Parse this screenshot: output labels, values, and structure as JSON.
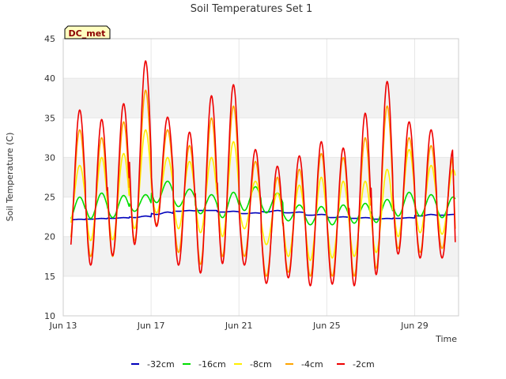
{
  "chart_data": {
    "type": "line",
    "title": "Soil Temperatures Set 1",
    "xlabel": "Time",
    "ylabel": "Soil Temperature (C)",
    "badge": "DC_met",
    "ylim": [
      10,
      45
    ],
    "xlim": [
      0,
      18
    ],
    "x_ticks": [
      {
        "x": 0,
        "label": "Jun 13"
      },
      {
        "x": 4,
        "label": "Jun 17"
      },
      {
        "x": 8,
        "label": "Jun 21"
      },
      {
        "x": 12,
        "label": "Jun 25"
      },
      {
        "x": 16,
        "label": "Jun 29"
      }
    ],
    "y_ticks": [
      10,
      15,
      20,
      25,
      30,
      35,
      40,
      45
    ],
    "bands": [
      [
        15,
        20
      ],
      [
        25,
        30
      ],
      [
        35,
        40
      ]
    ],
    "band_color": "#f2f2f2",
    "legend_position": "bottom",
    "series": [
      {
        "name": "-32cm",
        "color": "#0000bb",
        "daily_min": [
          22.1,
          22.2,
          22.3,
          22.4,
          22.8,
          23.2,
          23.3,
          23.1,
          22.9,
          23.1,
          23.0,
          22.7,
          22.4,
          22.3,
          22.2,
          22.3,
          22.6,
          22.7
        ],
        "daily_max": [
          22.2,
          22.3,
          22.4,
          22.6,
          23.1,
          23.3,
          23.3,
          23.2,
          23.0,
          23.3,
          23.1,
          22.8,
          22.5,
          22.4,
          22.3,
          22.4,
          22.8,
          22.8
        ]
      },
      {
        "name": "-16cm",
        "color": "#00dd00",
        "daily_min": [
          22.0,
          22.3,
          22.4,
          23.2,
          24.3,
          23.8,
          22.9,
          22.4,
          23.3,
          23.0,
          22.0,
          21.5,
          21.5,
          21.7,
          21.8,
          22.6,
          22.6,
          22.4
        ],
        "daily_max": [
          25.0,
          25.5,
          25.2,
          25.3,
          27.0,
          26.0,
          25.3,
          25.6,
          26.3,
          25.5,
          24.0,
          23.8,
          24.0,
          24.2,
          24.7,
          25.6,
          25.3,
          25.0
        ]
      },
      {
        "name": "-8cm",
        "color": "#ffee00",
        "daily_min": [
          21.0,
          19.5,
          19.6,
          21.0,
          23.0,
          21.0,
          20.5,
          20.0,
          21.0,
          19.0,
          17.5,
          17.0,
          17.3,
          17.5,
          18.0,
          20.0,
          20.5,
          20.3
        ],
        "daily_max": [
          29.0,
          30.0,
          30.5,
          33.5,
          30.0,
          29.5,
          30.0,
          32.0,
          27.0,
          25.5,
          26.5,
          27.5,
          27.0,
          27.0,
          28.5,
          31.0,
          29.0,
          28.5
        ]
      },
      {
        "name": "-4cm",
        "color": "#ffa500",
        "daily_min": [
          18.5,
          17.5,
          17.5,
          19.5,
          21.5,
          18.0,
          16.5,
          17.5,
          17.5,
          15.0,
          15.5,
          15.0,
          15.0,
          15.0,
          16.0,
          18.5,
          18.0,
          18.5
        ],
        "daily_max": [
          33.5,
          32.5,
          34.5,
          38.5,
          33.5,
          31.5,
          35.0,
          36.5,
          29.5,
          27.5,
          28.5,
          30.5,
          30.0,
          32.5,
          36.5,
          32.5,
          31.5,
          30.0
        ],
        "end_value": 21.0
      },
      {
        "name": "-2cm",
        "color": "#ee0000",
        "daily_min": [
          17.2,
          16.4,
          17.6,
          19.0,
          21.3,
          16.4,
          15.4,
          16.6,
          16.4,
          14.1,
          14.8,
          13.8,
          14.0,
          13.8,
          15.2,
          17.8,
          17.3,
          17.3
        ],
        "daily_max": [
          36.0,
          34.8,
          36.8,
          42.2,
          35.1,
          33.2,
          37.8,
          39.2,
          31.0,
          28.9,
          30.2,
          32.0,
          31.2,
          35.6,
          39.6,
          34.5,
          33.5,
          31.0
        ],
        "end_value": 19.3
      }
    ]
  }
}
